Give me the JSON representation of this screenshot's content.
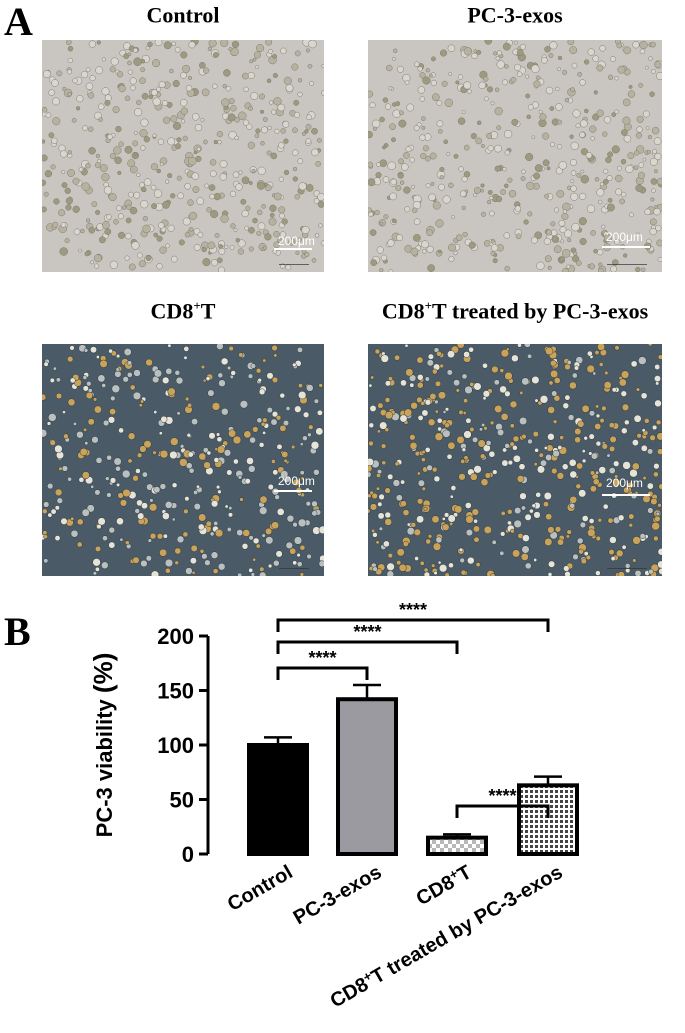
{
  "panels": {
    "a_label": "A",
    "b_label": "B"
  },
  "micrographs": [
    {
      "title_main": "Control",
      "title_sup": "",
      "title_rest": "",
      "scale": "200μm",
      "style": "bright"
    },
    {
      "title_main": "PC-3-exos",
      "title_sup": "",
      "title_rest": "",
      "scale": "200μm",
      "style": "bright"
    },
    {
      "title_main": "CD8",
      "title_sup": "+",
      "title_rest": "T",
      "scale": "200μm",
      "style": "dark"
    },
    {
      "title_main": "CD8",
      "title_sup": "+",
      "title_rest": "T treated by PC-3-exos",
      "scale": "200μm",
      "style": "darkdense"
    }
  ],
  "colors": {
    "bar_control": "#000000",
    "bar_pc3exos": "#9a9aa0",
    "bar_cd8t": "#d8d8d8",
    "bar_cd8t_treated": "#555555"
  },
  "chart_data": {
    "type": "bar",
    "ylabel_main": "PC-3 viability ",
    "ylabel_unit": "(%)",
    "ylim": [
      0,
      200
    ],
    "yticks": [
      "0",
      "50",
      "100",
      "150",
      "200"
    ],
    "yticks_values": [
      0,
      50,
      100,
      150,
      200
    ],
    "categories": [
      {
        "main": "Control",
        "sup": "",
        "rest": ""
      },
      {
        "main": "PC-3-exos",
        "sup": "",
        "rest": ""
      },
      {
        "main": "CD8",
        "sup": "+",
        "rest": "T"
      },
      {
        "main": "CD8",
        "sup": "+",
        "rest": "T treated by PC-3-exos"
      }
    ],
    "values": [
      100,
      142,
      15,
      63
    ],
    "errors": [
      7,
      13,
      3,
      8
    ],
    "patterns": [
      "solid",
      "solid",
      "checker",
      "grid"
    ],
    "significance": [
      {
        "from": 0,
        "to": 1,
        "label": "****"
      },
      {
        "from": 0,
        "to": 2,
        "label": "****"
      },
      {
        "from": 0,
        "to": 3,
        "label": "****"
      },
      {
        "from": 2,
        "to": 3,
        "label": "****"
      }
    ]
  }
}
